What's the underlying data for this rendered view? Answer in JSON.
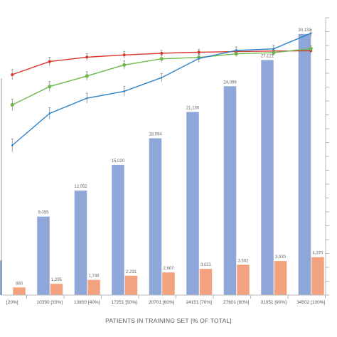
{
  "chart_data": {
    "type": "bar",
    "title": "",
    "xlabel": "PATIENTS IN TRAINING SET [% OF TOTAL]",
    "ylabel": "",
    "categories": [
      "[20%]",
      "10350 [30%]",
      "13800 [40%]",
      "17251 [50%]",
      "20701 [60%]",
      "24151 [70%]",
      "27601 [80%]",
      "31051 [90%]",
      "34502 [100%]"
    ],
    "bar_ylim": [
      0,
      32000
    ],
    "line_ylim": [
      0,
      1
    ],
    "series": [
      {
        "kind": "bar",
        "color": "#8fa6d8",
        "values": [
          null,
          9055,
          12052,
          15020,
          18094,
          21130,
          24099,
          27121,
          30132
        ],
        "labels": [
          "",
          "9,055",
          "12,052",
          "15,020",
          "18,094",
          "21,130",
          "24,099",
          "27,121",
          "30,132"
        ]
      },
      {
        "kind": "bar",
        "color": "#f2a27f",
        "values": [
          880,
          1295,
          1748,
          2231,
          2607,
          3021,
          3502,
          3930,
          4370
        ],
        "labels": [
          "880",
          "1,295",
          "1,748",
          "2,231",
          "2,607",
          "3,021",
          "3,502",
          "3,930",
          "4,370"
        ]
      },
      {
        "kind": "line",
        "color": "#d9342b",
        "values": [
          0.795,
          0.842,
          0.858,
          0.866,
          0.872,
          0.876,
          0.878,
          0.88,
          0.881
        ]
      },
      {
        "kind": "line",
        "color": "#6cb84a",
        "values": [
          0.686,
          0.752,
          0.79,
          0.83,
          0.852,
          0.857,
          0.87,
          0.874,
          0.889
        ]
      },
      {
        "kind": "line",
        "color": "#2e83c9",
        "values": [
          0.54,
          0.655,
          0.71,
          0.735,
          0.784,
          0.853,
          0.882,
          0.888,
          0.944
        ],
        "markers": false
      }
    ],
    "grid": false,
    "legend": "none"
  },
  "colors": {
    "axis": "#b8b8b8",
    "tick_label": "#555555",
    "data_label": "#666666",
    "error_bar": "#888888"
  }
}
